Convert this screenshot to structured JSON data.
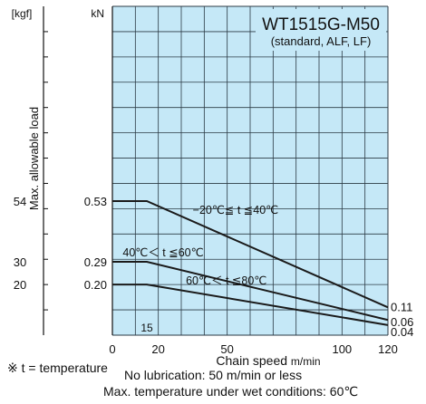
{
  "chart_data": {
    "type": "line",
    "title": "WT1515G-M50",
    "subtitle": "(standard, ALF, LF)",
    "xlabel": "Chain speed",
    "xunit": "m/min",
    "ylabel": "Max. allowable load",
    "yunit_left": "kgf",
    "yunit_right": "kN",
    "xlim": [
      0,
      120
    ],
    "ylim": [
      0,
      1.3
    ],
    "x_ticks": [
      0,
      20,
      50,
      100,
      120
    ],
    "x_tick_labels": [
      "0",
      "20",
      "50",
      "100",
      "120"
    ],
    "x_extra_label": "15",
    "kgf_ticks": [
      {
        "value": 0.53,
        "label": "54"
      },
      {
        "value": 0.29,
        "label": "30"
      },
      {
        "value": 0.2,
        "label": "20"
      }
    ],
    "series": [
      {
        "name": "−20℃≦ t ≦40℃",
        "x": [
          0,
          15,
          120
        ],
        "y": [
          0.53,
          0.53,
          0.11
        ],
        "start_label": "0.53",
        "end_label": "0.11"
      },
      {
        "name": "40℃＜ t ≦60℃",
        "x": [
          0,
          15,
          120
        ],
        "y": [
          0.29,
          0.29,
          0.06
        ],
        "start_label": "0.29",
        "end_label": "0.06"
      },
      {
        "name": "60℃＜ t ≦80℃",
        "x": [
          0,
          15,
          120
        ],
        "y": [
          0.2,
          0.2,
          0.04
        ],
        "start_label": "0.20",
        "end_label": "0.04"
      }
    ],
    "grid": true,
    "background_color": "#c5e8f7",
    "line_color": "#1a1a1a"
  },
  "notes": {
    "temperature": "※ t = temperature",
    "lubrication": "No lubrication: 50 m/min or less",
    "wet": "Max. temperature under wet conditions: 60℃"
  }
}
